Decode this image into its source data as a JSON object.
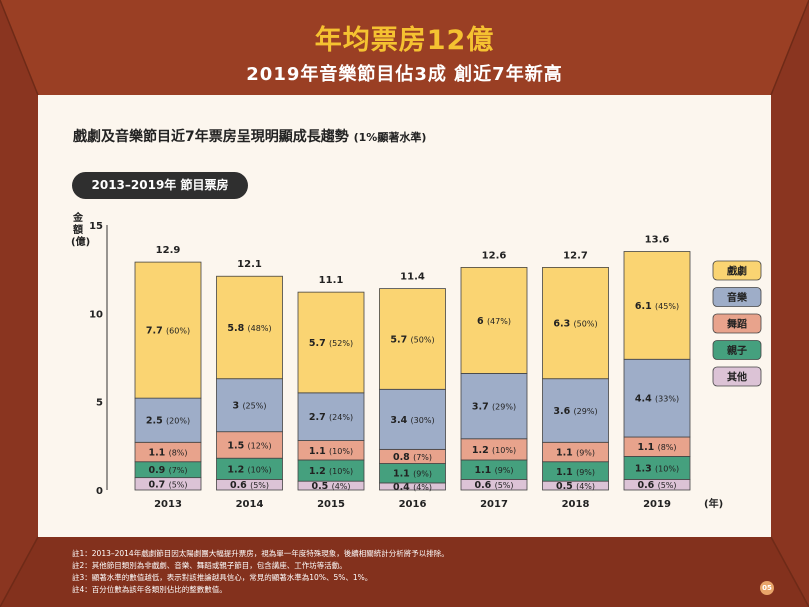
{
  "header": {
    "title": "年均票房12億",
    "subtitle": "2019年音樂節目佔3成 創近7年新高"
  },
  "heading": {
    "main": "戲劇及音樂節目近7年票房呈現明顯成長趨勢",
    "note": "(1%顯著水準)"
  },
  "pill_label": "2013–2019年 節目票房",
  "notes": [
    "註1：2013–2014年戲劇節目因太陽劇團大幅提升票房，視為單一年度特殊現象，後續相關統計分析將予以排除。",
    "註2：其他節目類別為非戲劇、音樂、舞蹈或親子節目，包含講座、工作坊等活動。",
    "註3：顯著水準的數值越低，表示對該推論越具信心，常見的顯著水準為10%、5%、1%。",
    "註4：百分位數為該年各類別佔比的整數數值。"
  ],
  "page_number": "05",
  "colors": {
    "background": "#9a3f24",
    "panel": "#fcf6ee",
    "title": "#f5c231",
    "drama": "#fad472",
    "music": "#9eadc8",
    "dance": "#e8a38c",
    "kids": "#45a07e",
    "other": "#dcc3d6"
  },
  "chart_data": {
    "type": "bar",
    "stacked": true,
    "ylabel": "金額(億)",
    "xunit": "(年)",
    "ylim": [
      0,
      15
    ],
    "yticks": [
      0,
      5,
      10,
      15
    ],
    "categories": [
      "2013",
      "2014",
      "2015",
      "2016",
      "2017",
      "2018",
      "2019"
    ],
    "totals": [
      "12.9",
      "12.1",
      "11.1",
      "11.4",
      "12.6",
      "12.7",
      "13.6"
    ],
    "series": [
      {
        "name": "其他",
        "color": "#dcc3d6",
        "values": [
          0.7,
          0.6,
          0.5,
          0.4,
          0.6,
          0.5,
          0.6
        ],
        "labels": [
          "0.7",
          "0.6",
          "0.5",
          "0.4",
          "0.6",
          "0.5",
          "0.6"
        ],
        "pcts": [
          "(5%)",
          "(5%)",
          "(4%)",
          "(4%)",
          "(5%)",
          "(4%)",
          "(5%)"
        ]
      },
      {
        "name": "親子",
        "color": "#45a07e",
        "values": [
          0.9,
          1.2,
          1.2,
          1.1,
          1.1,
          1.1,
          1.3
        ],
        "labels": [
          "0.9",
          "1.2",
          "1.2",
          "1.1",
          "1.1",
          "1.1",
          "1.3"
        ],
        "pcts": [
          "(7%)",
          "(10%)",
          "(10%)",
          "(9%)",
          "(9%)",
          "(9%)",
          "(10%)"
        ]
      },
      {
        "name": "舞蹈",
        "color": "#e8a38c",
        "values": [
          1.1,
          1.5,
          1.1,
          0.8,
          1.2,
          1.1,
          1.1
        ],
        "labels": [
          "1.1",
          "1.5",
          "1.1",
          "0.8",
          "1.2",
          "1.1",
          "1.1"
        ],
        "pcts": [
          "(8%)",
          "(12%)",
          "(10%)",
          "(7%)",
          "(10%)",
          "(9%)",
          "(8%)"
        ]
      },
      {
        "name": "音樂",
        "color": "#9eadc8",
        "values": [
          2.5,
          3,
          2.7,
          3.4,
          3.7,
          3.6,
          4.4
        ],
        "labels": [
          "2.5",
          "3",
          "2.7",
          "3.4",
          "3.7",
          "3.6",
          "4.4"
        ],
        "pcts": [
          "(20%)",
          "(25%)",
          "(24%)",
          "(30%)",
          "(29%)",
          "(29%)",
          "(33%)"
        ]
      },
      {
        "name": "戲劇",
        "color": "#fad472",
        "values": [
          7.7,
          5.8,
          5.7,
          5.7,
          6,
          6.3,
          6.1
        ],
        "labels": [
          "7.7",
          "5.8",
          "5.7",
          "5.7",
          "6",
          "6.3",
          "6.1"
        ],
        "pcts": [
          "(60%)",
          "(48%)",
          "(52%)",
          "(50%)",
          "(47%)",
          "(50%)",
          "(45%)"
        ]
      }
    ],
    "legend": [
      "戲劇",
      "音樂",
      "舞蹈",
      "親子",
      "其他"
    ],
    "legend_position": "right"
  }
}
